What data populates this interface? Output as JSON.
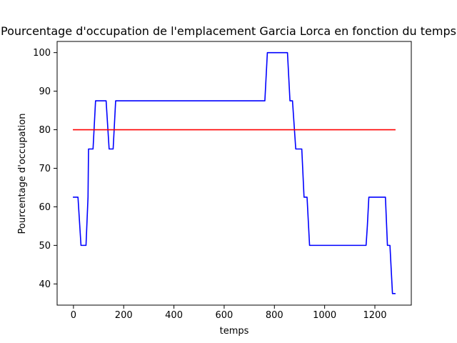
{
  "chart_data": {
    "type": "line",
    "title": "Pourcentage d'occupation de l'emplacement Garcia Lorca en fonction du temps",
    "xlabel": "temps",
    "ylabel": "Pourcentage d'occupation",
    "xlim": [
      -65,
      1345
    ],
    "ylim": [
      34.5,
      102.9
    ],
    "xticks": [
      0,
      200,
      400,
      600,
      800,
      1000,
      1200
    ],
    "yticks": [
      40,
      50,
      60,
      70,
      80,
      90,
      100
    ],
    "xtick_labels": [
      "0",
      "200",
      "400",
      "600",
      "800",
      "1000",
      "1200"
    ],
    "ytick_labels": [
      "40",
      "50",
      "60",
      "70",
      "80",
      "90",
      "100"
    ],
    "grid": false,
    "series": [
      {
        "color": "#0000ff",
        "x": [
          0,
          18,
          30,
          50,
          58,
          60,
          78,
          88,
          92,
          130,
          142,
          158,
          168,
          172,
          762,
          768,
          772,
          852,
          862,
          866,
          872,
          885,
          892,
          909,
          918,
          930,
          940,
          950,
          1165,
          1170,
          1176,
          1242,
          1250,
          1258,
          1260,
          1270,
          1280
        ],
        "y": [
          62.5,
          62.5,
          50,
          50,
          62.5,
          75,
          75,
          87.5,
          87.5,
          87.5,
          75,
          75,
          87.5,
          87.5,
          87.5,
          95,
          100,
          100,
          87.5,
          87.5,
          87.5,
          75,
          75,
          75,
          62.5,
          62.5,
          50,
          50,
          50,
          55,
          62.5,
          62.5,
          50,
          50,
          50,
          37.5,
          37.5
        ]
      },
      {
        "color": "#ff0000",
        "x": [
          0,
          1280
        ],
        "y": [
          80,
          80
        ]
      }
    ]
  }
}
